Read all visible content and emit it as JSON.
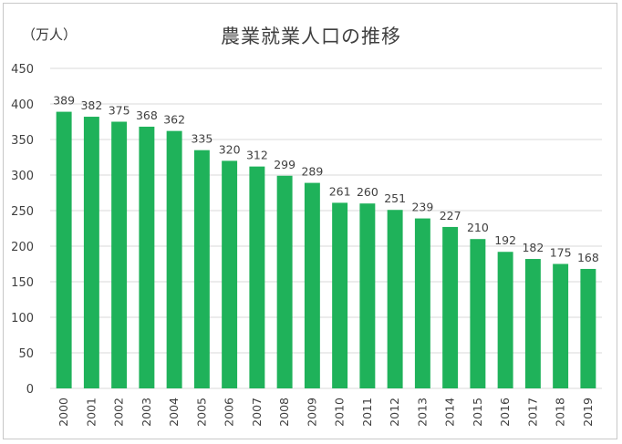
{
  "chart_data": {
    "type": "bar",
    "title": "農業就業人口の推移",
    "unit_label": "（万人）",
    "xlabel": "",
    "ylabel": "",
    "categories": [
      "2000",
      "2001",
      "2002",
      "2003",
      "2004",
      "2005",
      "2006",
      "2007",
      "2008",
      "2009",
      "2010",
      "2011",
      "2012",
      "2013",
      "2014",
      "2015",
      "2016",
      "2017",
      "2018",
      "2019"
    ],
    "values": [
      389,
      382,
      375,
      368,
      362,
      335,
      320,
      312,
      299,
      289,
      261,
      260,
      251,
      239,
      227,
      210,
      192,
      182,
      175,
      168
    ],
    "ylim": [
      0,
      450
    ],
    "yticks": [
      0,
      50,
      100,
      150,
      200,
      250,
      300,
      350,
      400,
      450
    ],
    "grid": true,
    "legend": "none",
    "bar_color": "#1fb25a",
    "grid_color": "#d9d9d9",
    "text_color": "#404040"
  }
}
